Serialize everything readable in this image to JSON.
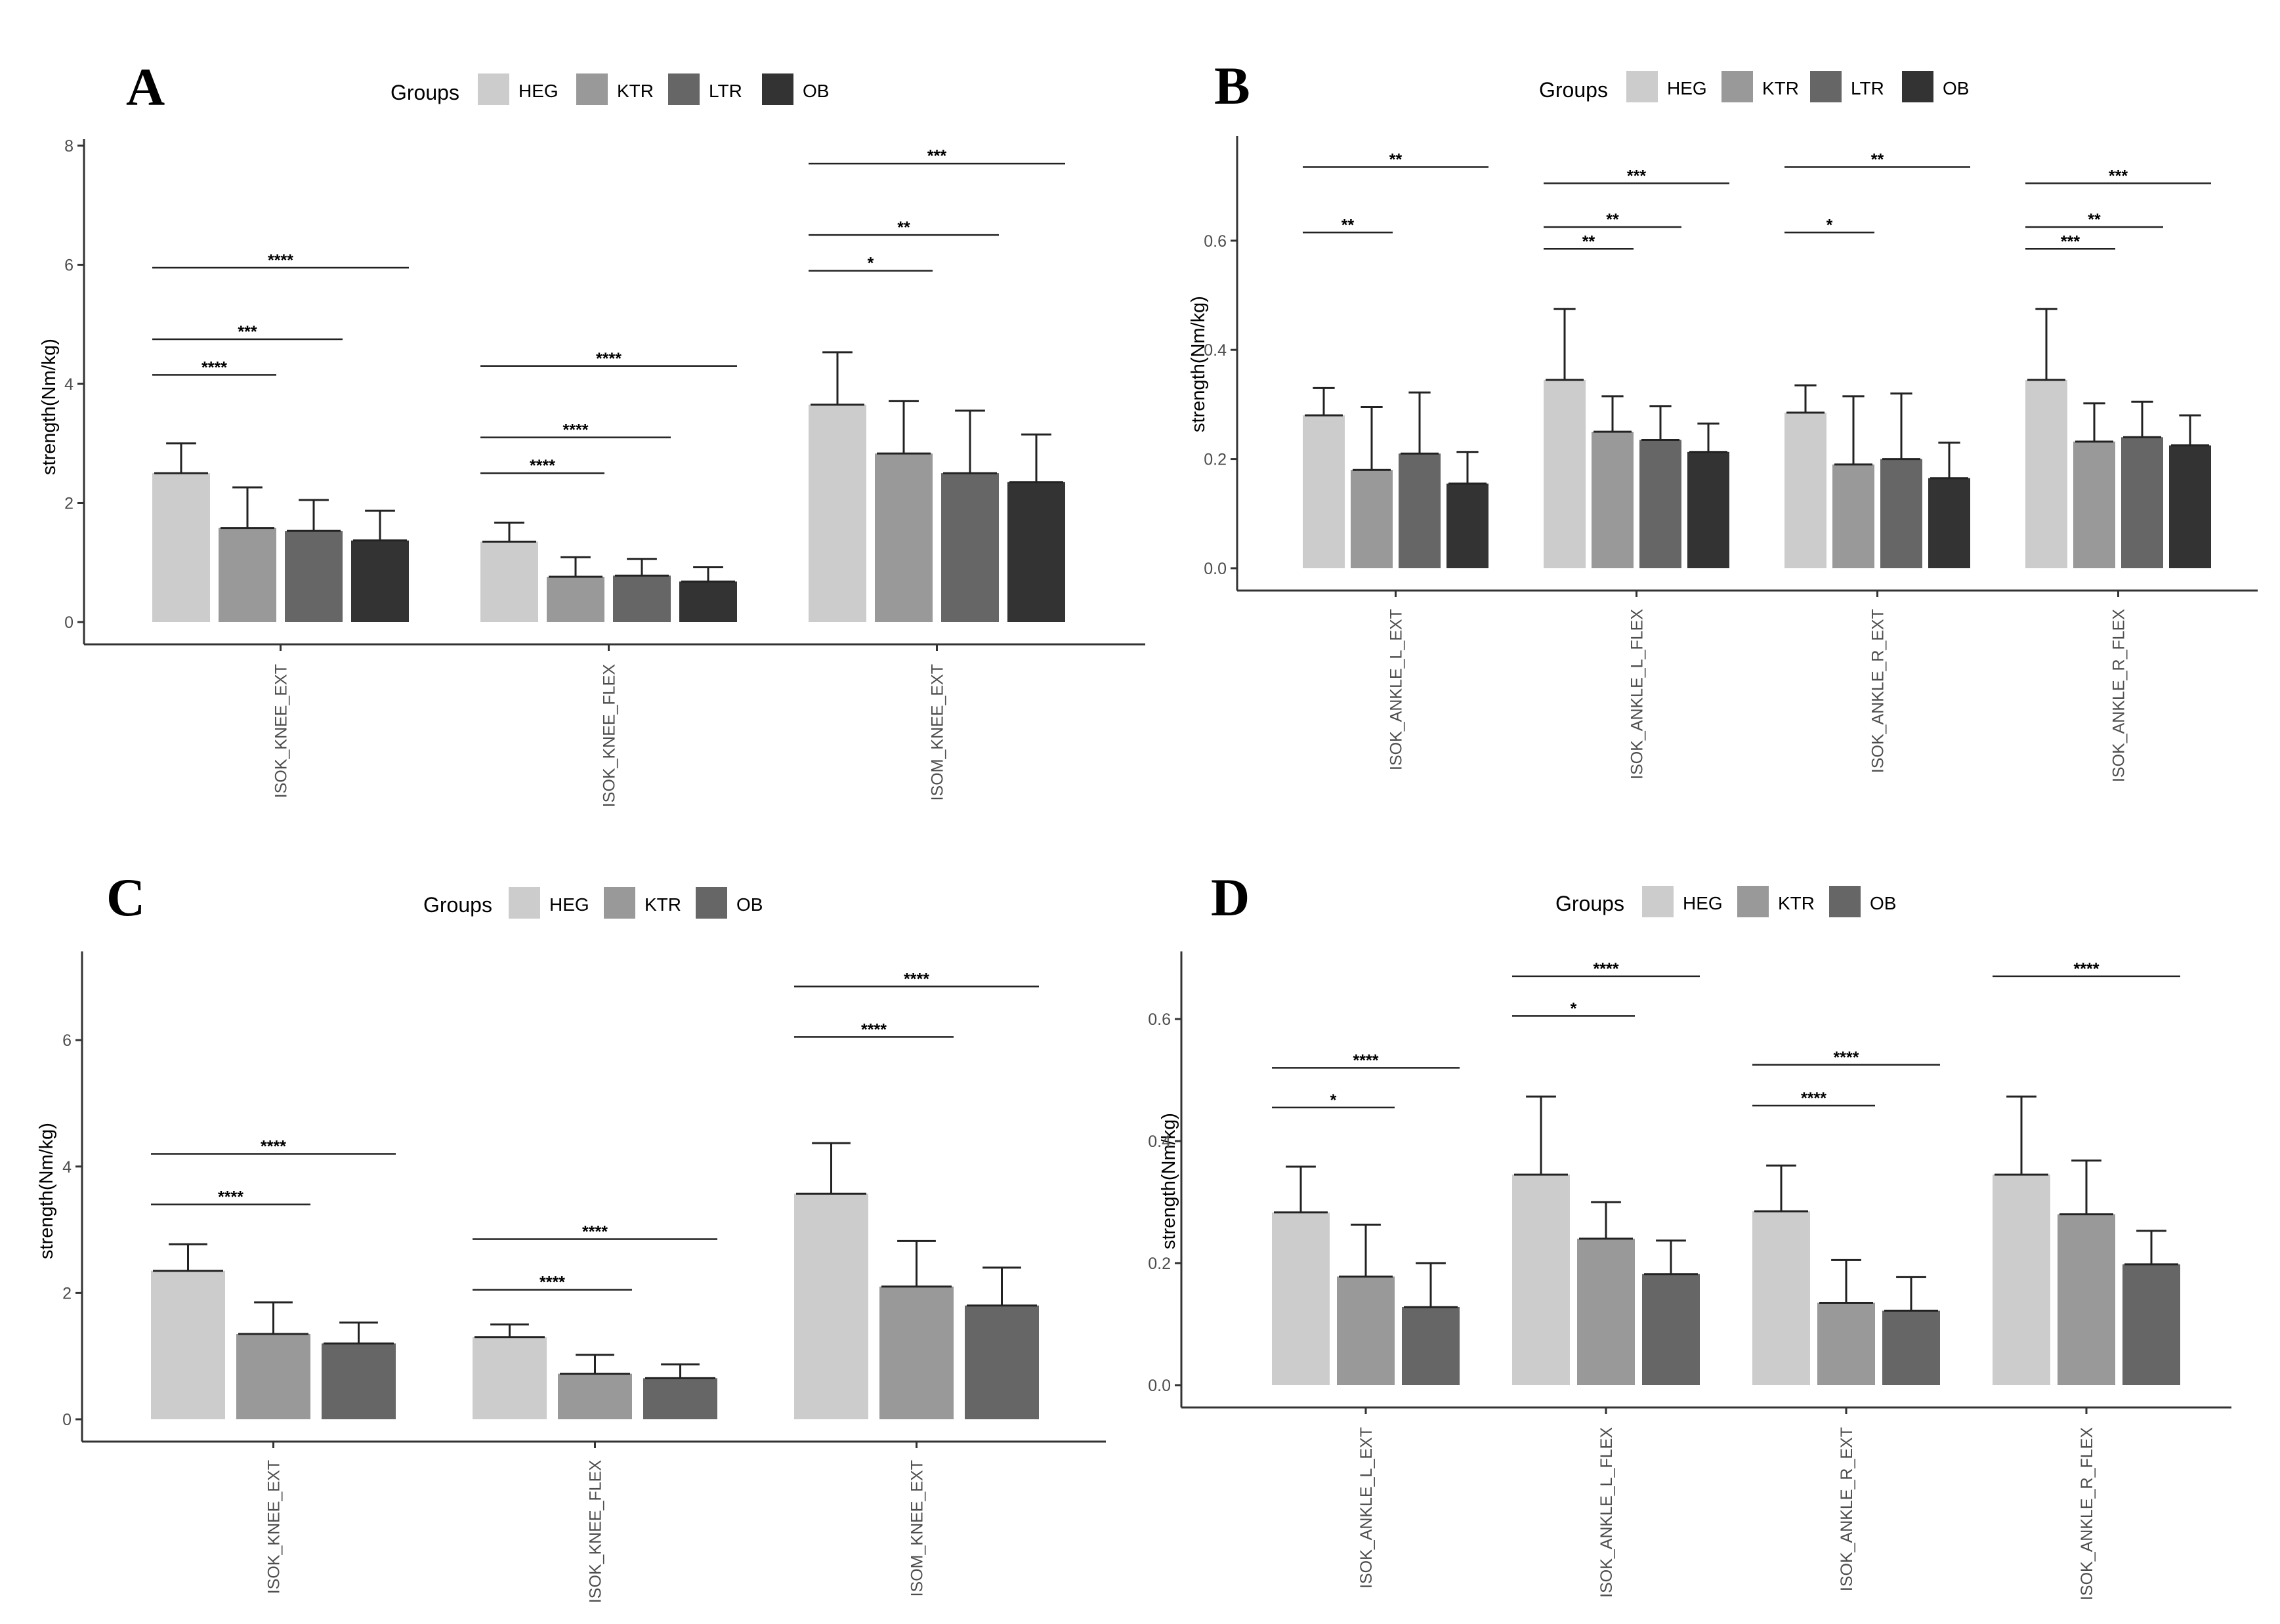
{
  "figure": {
    "legend_title": "Groups",
    "ylabel": "strength(Nm/kg)"
  },
  "chart_data": [
    {
      "panel": "A",
      "type": "bar",
      "ylabel": "strength(Nm/kg)",
      "ylim": [
        0,
        8
      ],
      "yticks": [
        "0",
        "2",
        "4",
        "6",
        "8"
      ],
      "legend_title": "Groups",
      "groups": [
        "HEG",
        "KTR",
        "LTR",
        "OB"
      ],
      "colors": [
        "#cccccc",
        "#999999",
        "#666666",
        "#333333"
      ],
      "categories": [
        "ISOK_KNEE_EXT",
        "ISOK_KNEE_FLEX",
        "ISOM_KNEE_EXT"
      ],
      "series": [
        {
          "name": "HEG",
          "values": [
            2.5,
            1.35,
            3.65
          ],
          "err": [
            0.5,
            0.32,
            0.88
          ]
        },
        {
          "name": "KTR",
          "values": [
            1.58,
            0.76,
            2.83
          ],
          "err": [
            0.68,
            0.33,
            0.88
          ]
        },
        {
          "name": "LTR",
          "values": [
            1.53,
            0.78,
            2.5
          ],
          "err": [
            0.52,
            0.28,
            1.05
          ]
        },
        {
          "name": "OB",
          "values": [
            1.37,
            0.68,
            2.35
          ],
          "err": [
            0.5,
            0.24,
            0.8
          ]
        }
      ],
      "significance": [
        {
          "category": 0,
          "from": 0,
          "to": 1,
          "y": 4.15,
          "label": "****"
        },
        {
          "category": 0,
          "from": 0,
          "to": 2,
          "y": 4.75,
          "label": "***"
        },
        {
          "category": 0,
          "from": 0,
          "to": 3,
          "y": 5.95,
          "label": "****"
        },
        {
          "category": 1,
          "from": 0,
          "to": 1,
          "y": 2.5,
          "label": "****"
        },
        {
          "category": 1,
          "from": 0,
          "to": 2,
          "y": 3.1,
          "label": "****"
        },
        {
          "category": 1,
          "from": 0,
          "to": 3,
          "y": 4.3,
          "label": "****"
        },
        {
          "category": 2,
          "from": 0,
          "to": 1,
          "y": 5.9,
          "label": "*"
        },
        {
          "category": 2,
          "from": 0,
          "to": 2,
          "y": 6.5,
          "label": "**"
        },
        {
          "category": 2,
          "from": 0,
          "to": 3,
          "y": 7.7,
          "label": "***"
        }
      ]
    },
    {
      "panel": "B",
      "type": "bar",
      "ylabel": "strength(Nm/kg)",
      "ylim": [
        0,
        0.78
      ],
      "yticks": [
        "0.0",
        "0.2",
        "0.4",
        "0.6"
      ],
      "ytick_values": [
        0,
        0.2,
        0.4,
        0.6
      ],
      "legend_title": "Groups",
      "groups": [
        "HEG",
        "KTR",
        "LTR",
        "OB"
      ],
      "colors": [
        "#cccccc",
        "#999999",
        "#666666",
        "#333333"
      ],
      "categories": [
        "ISOK_ANKLE_L_EXT",
        "ISOK_ANKLE_L_FLEX",
        "ISOK_ANKLE_R_EXT",
        "ISOK_ANKLE_R_FLEX"
      ],
      "series": [
        {
          "name": "HEG",
          "values": [
            0.28,
            0.345,
            0.285,
            0.345
          ],
          "err": [
            0.05,
            0.13,
            0.05,
            0.13
          ]
        },
        {
          "name": "KTR",
          "values": [
            0.18,
            0.25,
            0.19,
            0.232
          ],
          "err": [
            0.115,
            0.065,
            0.125,
            0.07
          ]
        },
        {
          "name": "LTR",
          "values": [
            0.21,
            0.235,
            0.2,
            0.24
          ],
          "err": [
            0.112,
            0.062,
            0.12,
            0.065
          ]
        },
        {
          "name": "OB",
          "values": [
            0.155,
            0.213,
            0.165,
            0.225
          ],
          "err": [
            0.058,
            0.052,
            0.065,
            0.055
          ]
        }
      ],
      "significance": [
        {
          "category": 0,
          "from": 0,
          "to": 1,
          "y": 0.615,
          "label": "**"
        },
        {
          "category": 0,
          "from": 0,
          "to": 3,
          "y": 0.735,
          "label": "**"
        },
        {
          "category": 1,
          "from": 0,
          "to": 1,
          "y": 0.585,
          "label": "**"
        },
        {
          "category": 1,
          "from": 0,
          "to": 2,
          "y": 0.625,
          "label": "**"
        },
        {
          "category": 1,
          "from": 0,
          "to": 3,
          "y": 0.705,
          "label": "***"
        },
        {
          "category": 2,
          "from": 0,
          "to": 1,
          "y": 0.615,
          "label": "*"
        },
        {
          "category": 2,
          "from": 0,
          "to": 3,
          "y": 0.735,
          "label": "**"
        },
        {
          "category": 3,
          "from": 0,
          "to": 1,
          "y": 0.585,
          "label": "***"
        },
        {
          "category": 3,
          "from": 0,
          "to": 2,
          "y": 0.625,
          "label": "**"
        },
        {
          "category": 3,
          "from": 0,
          "to": 3,
          "y": 0.705,
          "label": "***"
        }
      ]
    },
    {
      "panel": "C",
      "type": "bar",
      "ylabel": "strength(Nm/kg)",
      "ylim": [
        0,
        7.3
      ],
      "yticks": [
        "0",
        "2",
        "4",
        "6"
      ],
      "ytick_values": [
        0,
        2,
        4,
        6
      ],
      "legend_title": "Groups",
      "groups": [
        "HEG",
        "KTR",
        "OB"
      ],
      "colors": [
        "#cccccc",
        "#999999",
        "#666666"
      ],
      "categories": [
        "ISOK_KNEE_EXT",
        "ISOK_KNEE_FLEX",
        "ISOM_KNEE_EXT"
      ],
      "series": [
        {
          "name": "HEG",
          "values": [
            2.35,
            1.3,
            3.57
          ],
          "err": [
            0.42,
            0.2,
            0.8
          ]
        },
        {
          "name": "KTR",
          "values": [
            1.35,
            0.72,
            2.1
          ],
          "err": [
            0.5,
            0.3,
            0.72
          ]
        },
        {
          "name": "OB",
          "values": [
            1.2,
            0.65,
            1.8
          ],
          "err": [
            0.33,
            0.22,
            0.6
          ]
        }
      ],
      "significance": [
        {
          "category": 0,
          "from": 0,
          "to": 1,
          "y": 3.4,
          "label": "****"
        },
        {
          "category": 0,
          "from": 0,
          "to": 2,
          "y": 4.2,
          "label": "****"
        },
        {
          "category": 1,
          "from": 0,
          "to": 1,
          "y": 2.05,
          "label": "****"
        },
        {
          "category": 1,
          "from": 0,
          "to": 2,
          "y": 2.85,
          "label": "****"
        },
        {
          "category": 2,
          "from": 0,
          "to": 1,
          "y": 6.05,
          "label": "****"
        },
        {
          "category": 2,
          "from": 0,
          "to": 2,
          "y": 6.85,
          "label": "****"
        }
      ]
    },
    {
      "panel": "D",
      "type": "bar",
      "ylabel": "strength(Nm/kg)",
      "ylim": [
        0,
        0.7
      ],
      "yticks": [
        "0.0",
        "0.2",
        "0.4",
        "0.6"
      ],
      "ytick_values": [
        0,
        0.2,
        0.4,
        0.6
      ],
      "legend_title": "Groups",
      "groups": [
        "HEG",
        "KTR",
        "OB"
      ],
      "colors": [
        "#cccccc",
        "#999999",
        "#666666"
      ],
      "categories": [
        "ISOK_ANKLE_L_EXT",
        "ISOK_ANKLE_L_FLEX",
        "ISOK_ANKLE_R_EXT",
        "ISOK_ANKLE_R_FLEX"
      ],
      "series": [
        {
          "name": "HEG",
          "values": [
            0.283,
            0.345,
            0.285,
            0.345
          ],
          "err": [
            0.075,
            0.128,
            0.075,
            0.128
          ]
        },
        {
          "name": "KTR",
          "values": [
            0.178,
            0.24,
            0.135,
            0.28
          ],
          "err": [
            0.085,
            0.06,
            0.07,
            0.088
          ]
        },
        {
          "name": "OB",
          "values": [
            0.128,
            0.182,
            0.122,
            0.198
          ],
          "err": [
            0.072,
            0.055,
            0.055,
            0.055
          ]
        }
      ],
      "significance": [
        {
          "category": 0,
          "from": 0,
          "to": 1,
          "y": 0.455,
          "label": "*"
        },
        {
          "category": 0,
          "from": 0,
          "to": 2,
          "y": 0.52,
          "label": "****"
        },
        {
          "category": 1,
          "from": 0,
          "to": 1,
          "y": 0.605,
          "label": "*"
        },
        {
          "category": 1,
          "from": 0,
          "to": 2,
          "y": 0.67,
          "label": "****"
        },
        {
          "category": 2,
          "from": 0,
          "to": 1,
          "y": 0.458,
          "label": "****"
        },
        {
          "category": 2,
          "from": 0,
          "to": 2,
          "y": 0.525,
          "label": "****"
        },
        {
          "category": 3,
          "from": 0,
          "to": 2,
          "y": 0.67,
          "label": "****"
        }
      ]
    }
  ]
}
